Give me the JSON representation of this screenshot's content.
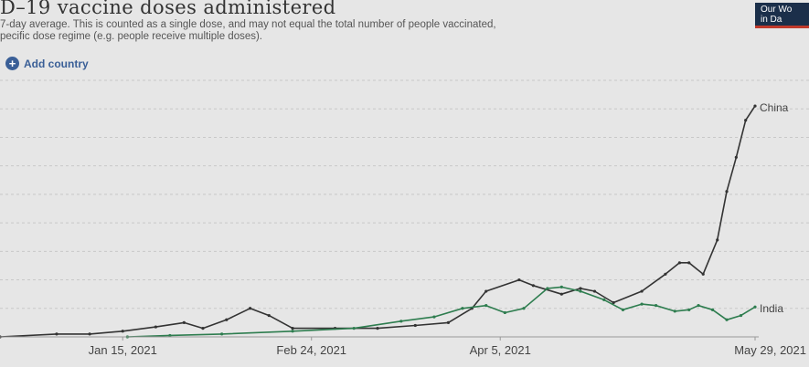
{
  "header": {
    "title": "D–19 vaccine doses administered",
    "subtitle_line1": "7-day average. This is counted as a single dose, and may not equal the total number of people vaccinated,",
    "subtitle_line2": "pecific dose regime (e.g. people receive multiple doses)."
  },
  "controls": {
    "add_country_label": "Add country",
    "add_icon": "plus-circle-icon"
  },
  "logo": {
    "line1": "Our Wo",
    "line2": "in Da"
  },
  "colors": {
    "china": "#333333",
    "india": "#2e7d4f",
    "accent": "#3a5f97",
    "grid": "#c8c8c8"
  },
  "chart_data": {
    "type": "line",
    "title": "",
    "xlabel": "",
    "ylabel": "",
    "x_ticks": [
      "Jan 15, 2021",
      "Feb 24, 2021",
      "Apr 5, 2021",
      "May 29, 2021"
    ],
    "x_range": [
      "2020-12-20",
      "2021-05-29"
    ],
    "y_range": [
      0,
      9
    ],
    "y_gridlines": 9,
    "y_tick_labels_visible": false,
    "series": [
      {
        "name": "China",
        "color": "#333333",
        "points": [
          [
            "2020-12-20",
            0.0
          ],
          [
            "2021-01-01",
            0.1
          ],
          [
            "2021-01-08",
            0.1
          ],
          [
            "2021-01-15",
            0.2
          ],
          [
            "2021-01-22",
            0.35
          ],
          [
            "2021-01-28",
            0.5
          ],
          [
            "2021-02-01",
            0.3
          ],
          [
            "2021-02-06",
            0.6
          ],
          [
            "2021-02-11",
            1.0
          ],
          [
            "2021-02-15",
            0.75
          ],
          [
            "2021-02-20",
            0.3
          ],
          [
            "2021-03-01",
            0.3
          ],
          [
            "2021-03-10",
            0.3
          ],
          [
            "2021-03-18",
            0.4
          ],
          [
            "2021-03-25",
            0.5
          ],
          [
            "2021-03-30",
            1.0
          ],
          [
            "2021-04-02",
            1.6
          ],
          [
            "2021-04-09",
            2.0
          ],
          [
            "2021-04-12",
            1.8
          ],
          [
            "2021-04-18",
            1.5
          ],
          [
            "2021-04-22",
            1.7
          ],
          [
            "2021-04-25",
            1.6
          ],
          [
            "2021-04-29",
            1.2
          ],
          [
            "2021-05-05",
            1.6
          ],
          [
            "2021-05-10",
            2.2
          ],
          [
            "2021-05-13",
            2.6
          ],
          [
            "2021-05-15",
            2.6
          ],
          [
            "2021-05-18",
            2.2
          ],
          [
            "2021-05-21",
            3.4
          ],
          [
            "2021-05-23",
            5.1
          ],
          [
            "2021-05-25",
            6.3
          ],
          [
            "2021-05-27",
            7.6
          ],
          [
            "2021-05-29",
            8.1
          ]
        ]
      },
      {
        "name": "India",
        "color": "#2e7d4f",
        "points": [
          [
            "2021-01-16",
            0.0
          ],
          [
            "2021-01-25",
            0.05
          ],
          [
            "2021-02-05",
            0.1
          ],
          [
            "2021-02-20",
            0.2
          ],
          [
            "2021-03-05",
            0.3
          ],
          [
            "2021-03-15",
            0.55
          ],
          [
            "2021-03-22",
            0.7
          ],
          [
            "2021-03-28",
            1.0
          ],
          [
            "2021-04-02",
            1.1
          ],
          [
            "2021-04-06",
            0.85
          ],
          [
            "2021-04-10",
            1.0
          ],
          [
            "2021-04-15",
            1.7
          ],
          [
            "2021-04-18",
            1.75
          ],
          [
            "2021-04-22",
            1.6
          ],
          [
            "2021-04-27",
            1.3
          ],
          [
            "2021-05-01",
            0.95
          ],
          [
            "2021-05-05",
            1.15
          ],
          [
            "2021-05-08",
            1.1
          ],
          [
            "2021-05-12",
            0.9
          ],
          [
            "2021-05-15",
            0.95
          ],
          [
            "2021-05-17",
            1.1
          ],
          [
            "2021-05-20",
            0.95
          ],
          [
            "2021-05-23",
            0.6
          ],
          [
            "2021-05-26",
            0.75
          ],
          [
            "2021-05-29",
            1.05
          ]
        ]
      }
    ]
  }
}
